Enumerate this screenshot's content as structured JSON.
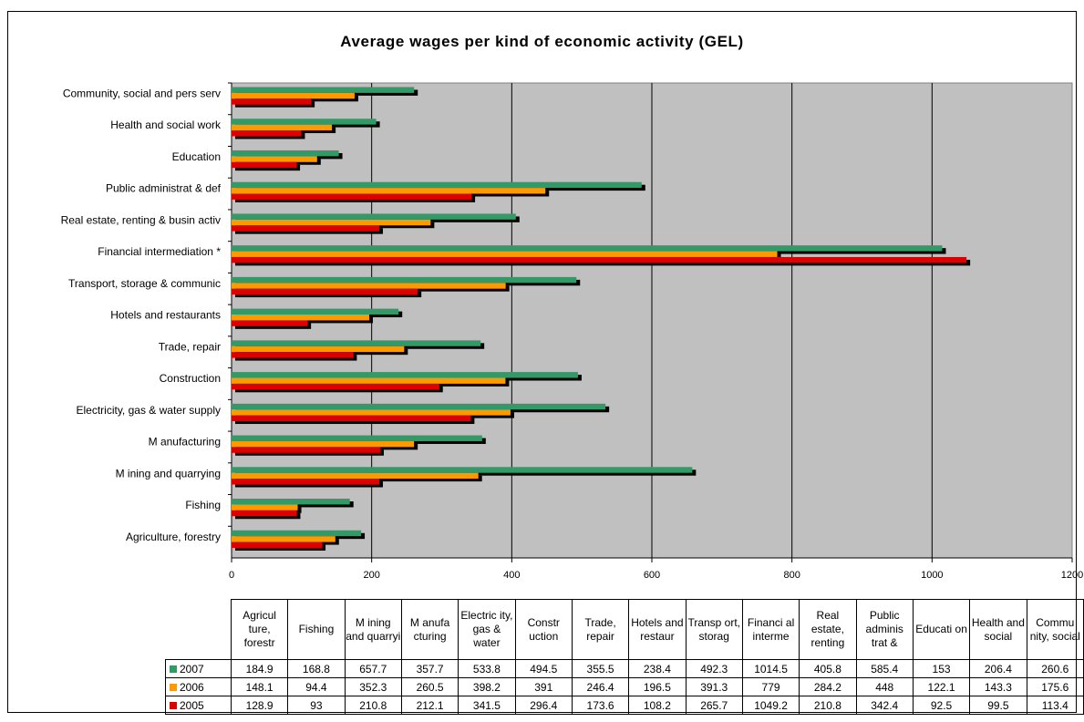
{
  "chart_data": {
    "type": "bar",
    "orientation": "horizontal",
    "title": "Average wages per kind of economic activity (GEL)",
    "xlabel": "",
    "ylabel": "",
    "xlim": [
      0,
      1200
    ],
    "ticks": [
      "0",
      "200",
      "400",
      "600",
      "800",
      "1000",
      "1200"
    ],
    "grid": true,
    "categories": [
      "Community, social and pers serv",
      "Health and social work",
      "Education",
      "Public administrat & def",
      "Real estate, renting & busin activ",
      "Financial intermediation *",
      "Transport, storage & communic",
      "Hotels and restaurants",
      "Trade, repair",
      "Construction",
      "Electricity, gas & water supply",
      "M anufacturing",
      "M ining and quarrying",
      "Fishing",
      "Agriculture, forestry"
    ],
    "series": [
      {
        "name": "2007",
        "color": "#339966",
        "values": [
          260.6,
          206.4,
          153,
          585.4,
          405.8,
          1014.5,
          492.3,
          238.4,
          355.5,
          494.5,
          533.8,
          357.7,
          657.7,
          168.8,
          184.9
        ]
      },
      {
        "name": "2006",
        "color": "#ff9900",
        "values": [
          175.6,
          143.3,
          122.1,
          448,
          284.2,
          779,
          391.3,
          196.5,
          246.4,
          391,
          398.2,
          260.5,
          352.3,
          94.4,
          148.1
        ]
      },
      {
        "name": "2005",
        "color": "#dd0000",
        "values": [
          113.4,
          99.5,
          92.5,
          342.4,
          210.8,
          1049.2,
          265.7,
          108.2,
          173.6,
          296.4,
          341.5,
          212.1,
          210.8,
          93,
          128.9
        ]
      }
    ],
    "table": {
      "headers": [
        "Agricul ture, forestr",
        "Fishing",
        "M ining and quarryi",
        "M anufa cturing",
        "Electric ity, gas & water",
        "Constr uction",
        "Trade, repair",
        "Hotels and restaur",
        "Transp ort, storag",
        "Financi al interme",
        "Real estate, renting",
        "Public adminis trat &",
        "Educati on",
        "Health and social",
        "Commu nity, social"
      ],
      "rows": [
        {
          "label": "2007",
          "color": "#339966",
          "cells": [
            "184.9",
            "168.8",
            "657.7",
            "357.7",
            "533.8",
            "494.5",
            "355.5",
            "238.4",
            "492.3",
            "1014.5",
            "405.8",
            "585.4",
            "153",
            "206.4",
            "260.6"
          ]
        },
        {
          "label": "2006",
          "color": "#ff9900",
          "cells": [
            "148.1",
            "94.4",
            "352.3",
            "260.5",
            "398.2",
            "391",
            "246.4",
            "196.5",
            "391.3",
            "779",
            "284.2",
            "448",
            "122.1",
            "143.3",
            "175.6"
          ]
        },
        {
          "label": "2005",
          "color": "#dd0000",
          "cells": [
            "128.9",
            "93",
            "210.8",
            "212.1",
            "341.5",
            "296.4",
            "173.6",
            "108.2",
            "265.7",
            "1049.2",
            "210.8",
            "342.4",
            "92.5",
            "99.5",
            "113.4"
          ]
        }
      ]
    }
  }
}
